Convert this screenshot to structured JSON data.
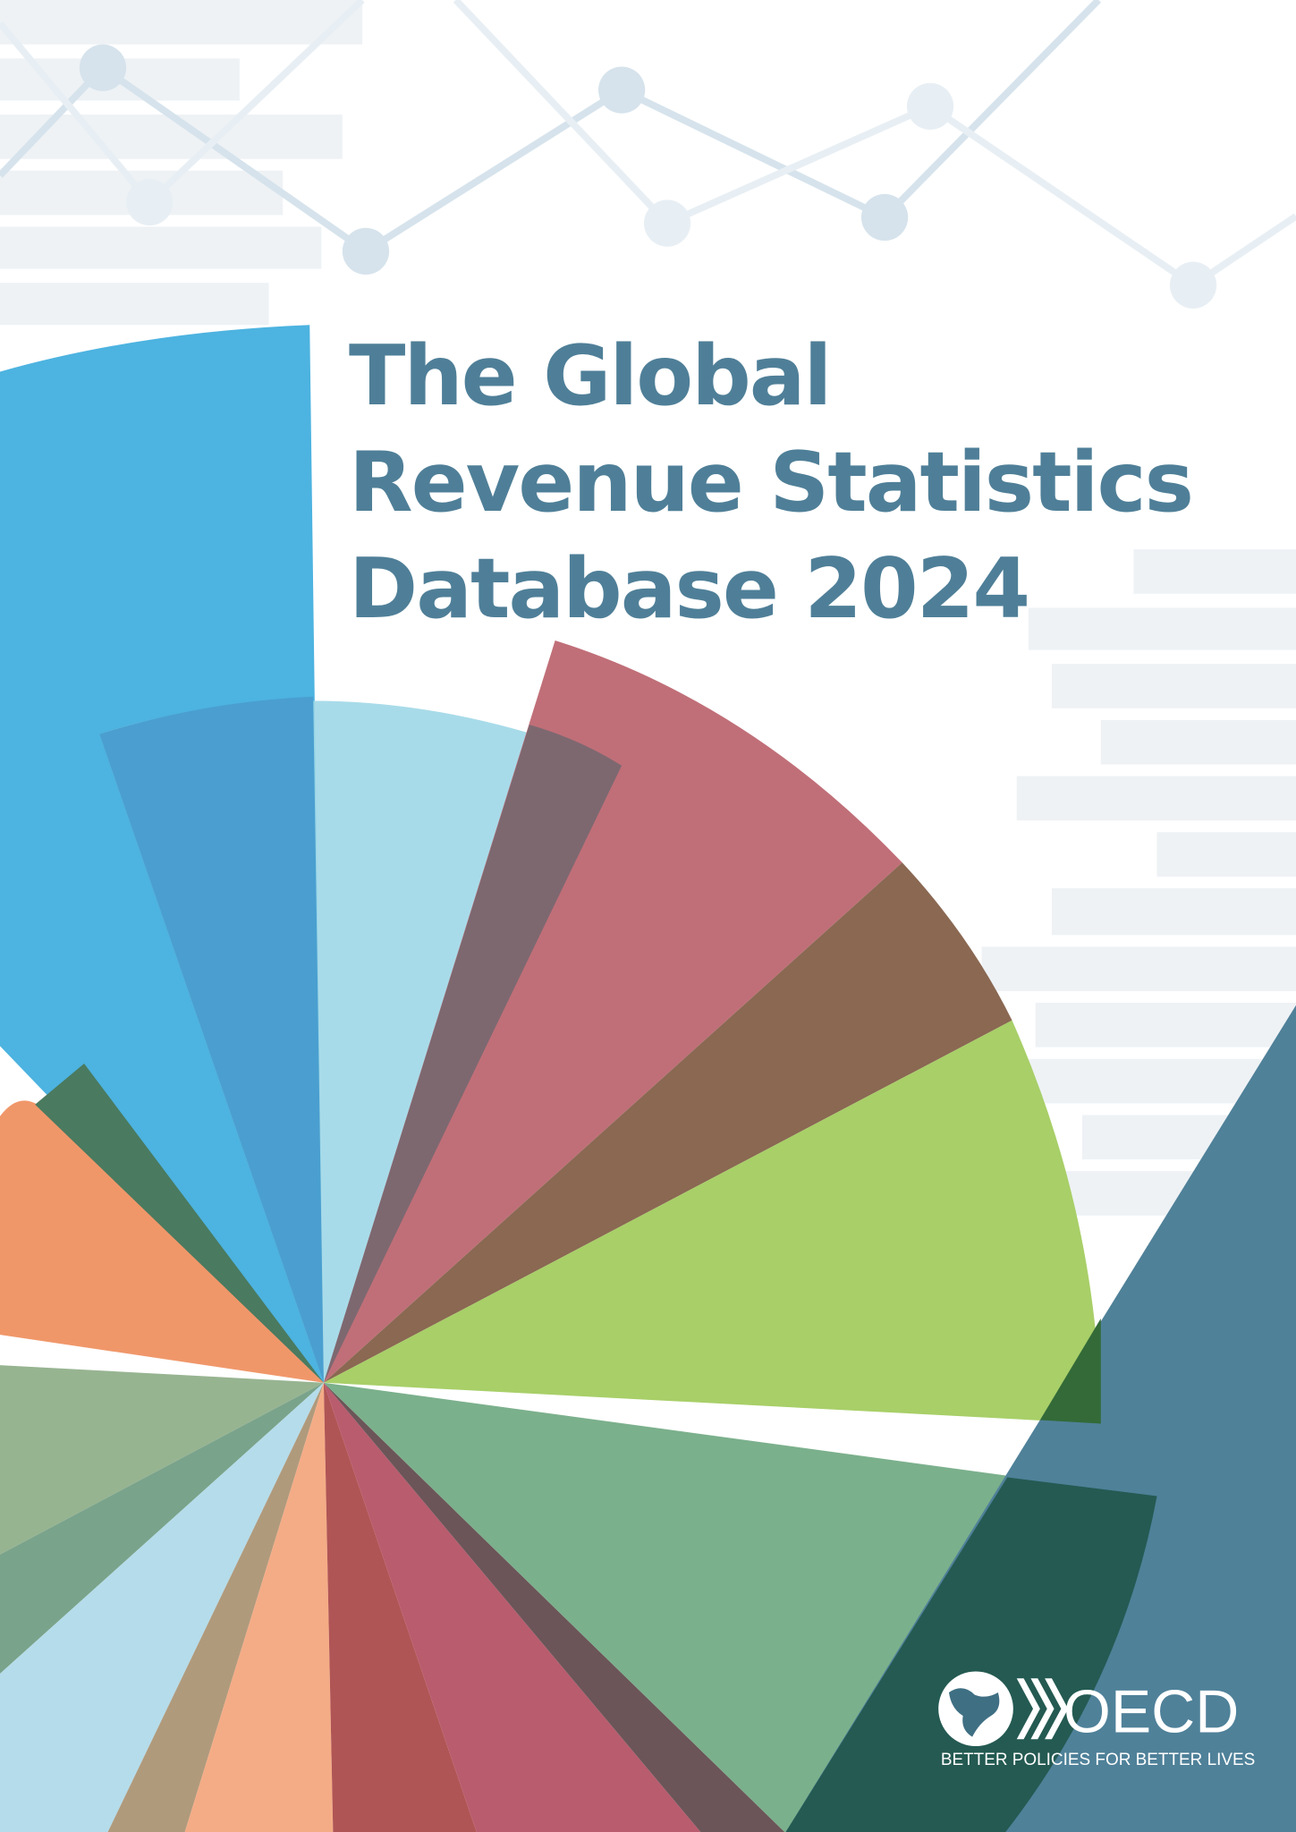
{
  "title": {
    "lines": [
      "The Global",
      "Revenue Statistics",
      "Database 2024"
    ]
  },
  "logo": {
    "name": "OECD",
    "tagline": "BETTER POLICIES FOR BETTER LIVES"
  }
}
